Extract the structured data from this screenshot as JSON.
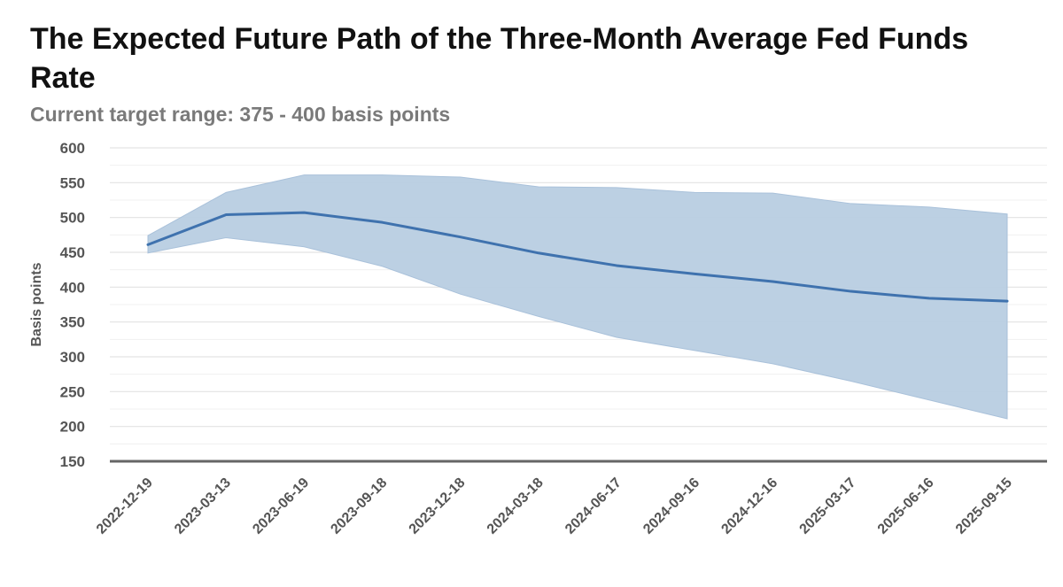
{
  "chart_data": {
    "type": "line",
    "title": "The Expected Future Path of the Three-Month Average Fed Funds Rate",
    "subtitle": "Current target range: 375 - 400 basis points",
    "ylabel": "Basis points",
    "xlabel": "",
    "ylim": [
      150,
      600
    ],
    "yticks": [
      150,
      200,
      250,
      300,
      350,
      400,
      450,
      500,
      550,
      600
    ],
    "grid": true,
    "categories": [
      "2022-12-19",
      "2023-03-13",
      "2023-06-19",
      "2023-09-18",
      "2023-12-18",
      "2024-03-18",
      "2024-06-17",
      "2024-09-16",
      "2024-12-16",
      "2025-03-17",
      "2025-06-16",
      "2025-09-15"
    ],
    "series": [
      {
        "type": "line",
        "values": [
          461,
          504,
          507,
          493,
          472,
          449,
          431,
          419,
          408,
          394,
          384,
          380
        ]
      },
      {
        "type": "band",
        "upper": [
          474,
          536,
          561,
          561,
          558,
          544,
          543,
          536,
          535,
          520,
          515,
          505
        ],
        "lower": [
          449,
          471,
          458,
          430,
          390,
          358,
          328,
          309,
          290,
          265,
          238,
          211
        ]
      }
    ],
    "colors": {
      "line": "#3f72ae",
      "band": "#b8cde2",
      "band_edge": "#a9c1da",
      "grid": "#e3e3e3",
      "baseline": "#666666"
    }
  }
}
